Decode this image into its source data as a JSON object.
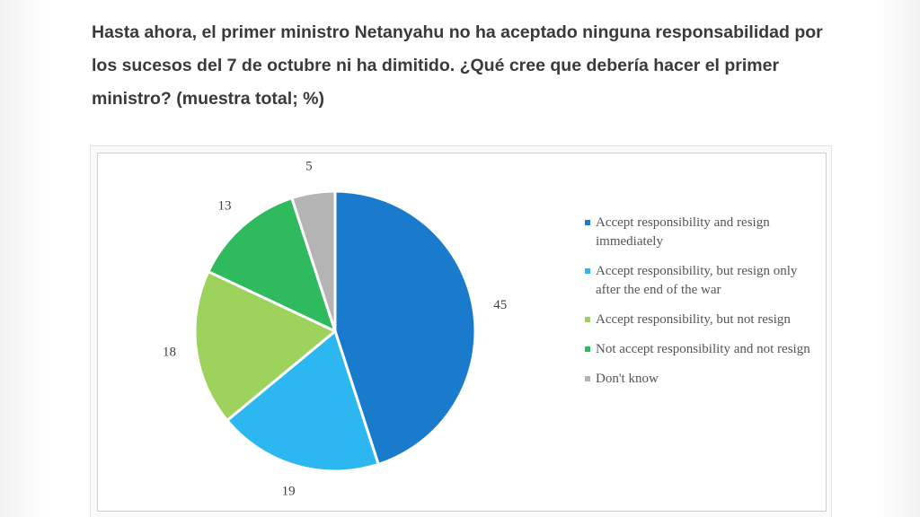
{
  "question": "Hasta ahora, el primer ministro Netanyahu no ha aceptado ninguna responsabilidad por los sucesos del 7 de octubre ni ha dimitido. ¿Qué cree que debería hacer el primer ministro? (muestra total; %)",
  "chart_data": {
    "type": "pie",
    "title": "",
    "categories": [
      "Accept responsibility and resign immediately",
      "Accept responsibility, but resign only after the end of the war",
      "Accept responsibility, but not resign",
      "Not accept responsibility and not resign",
      "Don't know"
    ],
    "values": [
      45,
      19,
      18,
      13,
      5
    ],
    "data_labels": [
      "45",
      "19",
      "18",
      "13",
      "5"
    ],
    "colors": [
      "#1a7acb",
      "#2db7f0",
      "#9dd35d",
      "#2fba5e",
      "#b4b4b4"
    ],
    "start_angle": "12 o'clock",
    "direction": "clockwise",
    "legend_position": "right"
  }
}
